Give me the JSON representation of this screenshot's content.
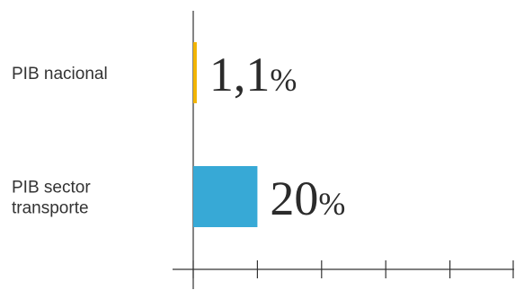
{
  "chart_data": {
    "type": "bar",
    "orientation": "horizontal",
    "categories": [
      "PIB nacional",
      "PIB sector\ntransporte"
    ],
    "values": [
      1.1,
      20
    ],
    "value_labels": [
      "1,1",
      "20"
    ],
    "value_suffix": "%",
    "colors": [
      "#f2b400",
      "#37a9d6"
    ],
    "xlim": [
      0,
      100
    ],
    "x_ticks": [
      0,
      20,
      40,
      60,
      80,
      100
    ],
    "grid": false,
    "legend": "none"
  }
}
